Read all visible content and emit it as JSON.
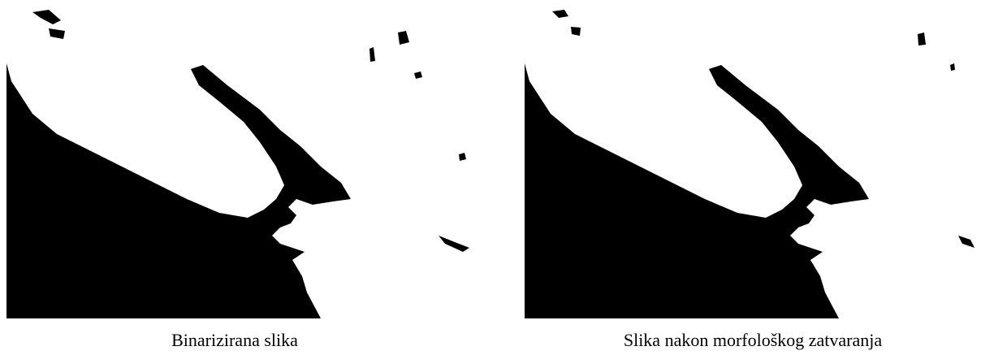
{
  "figures": [
    {
      "caption": "Binarizirana slika"
    },
    {
      "caption": "Slika nakon morfološkog zatvaranja"
    }
  ]
}
